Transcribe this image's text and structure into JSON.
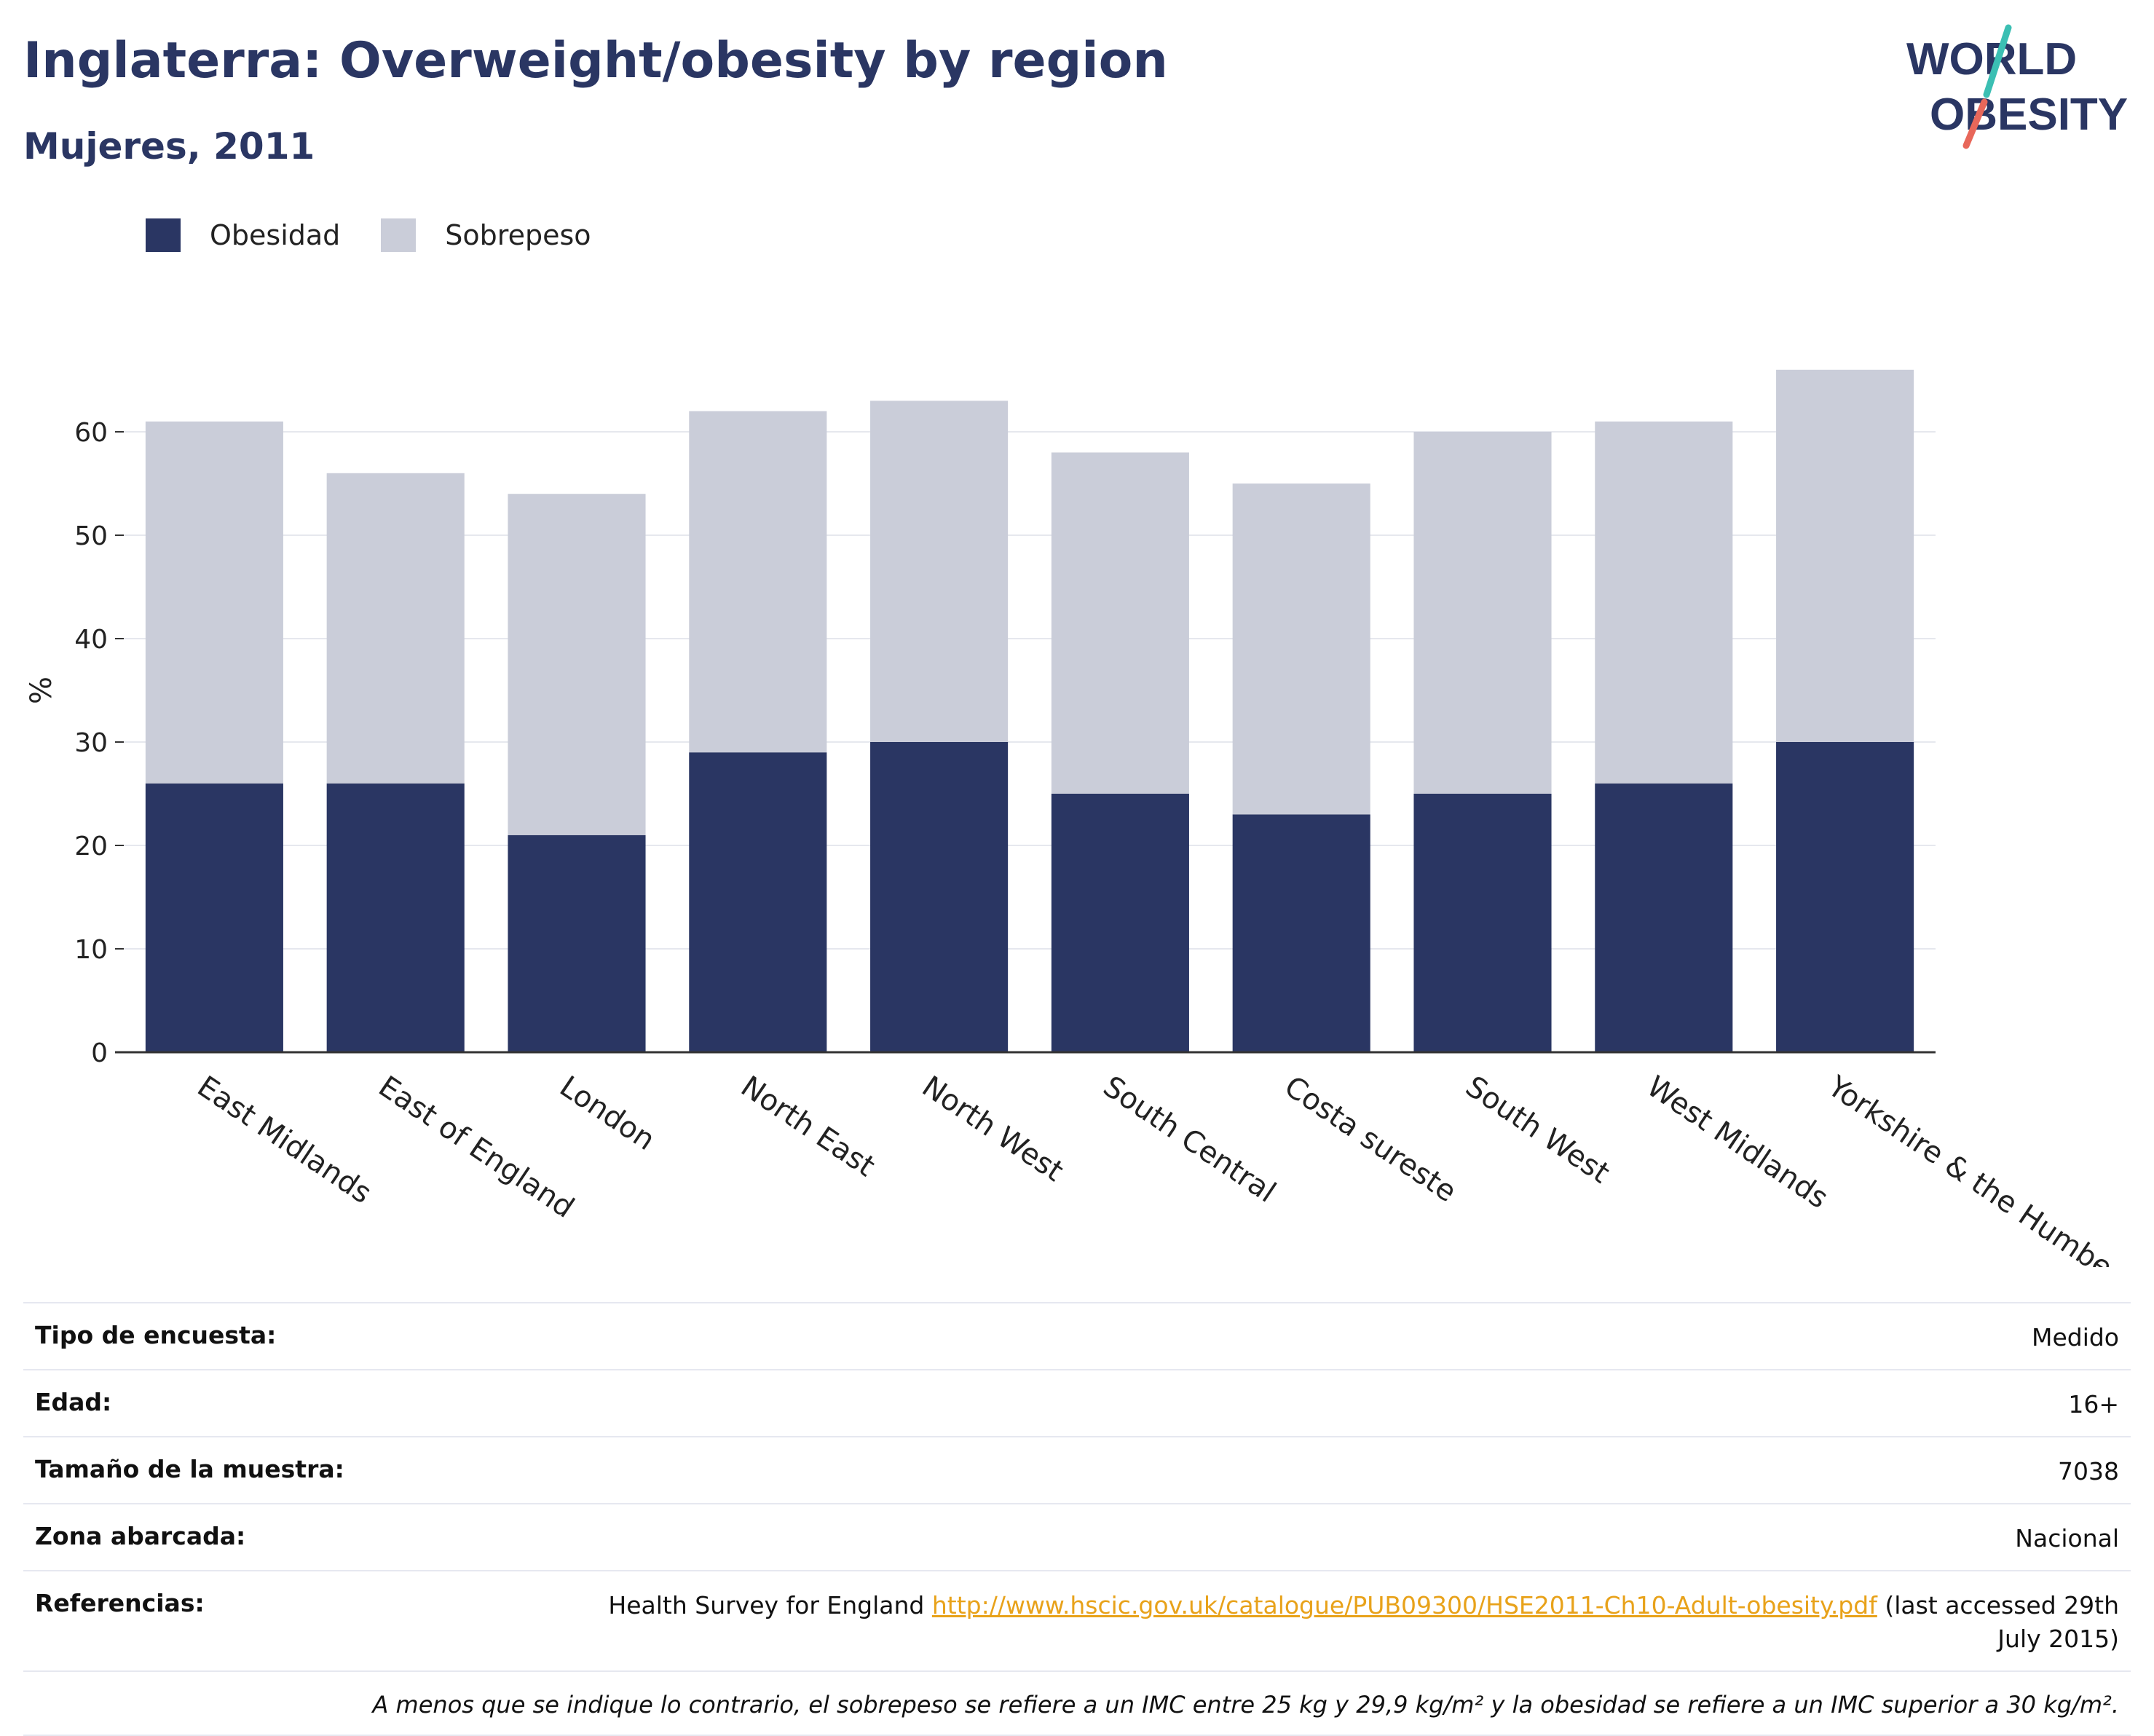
{
  "header": {
    "title": "Inglaterra: Overweight/obesity by region",
    "subtitle": "Mujeres, 2011",
    "logo_line1": "WORLD",
    "logo_line2": "OBESITY"
  },
  "legend": {
    "items": [
      {
        "label": "Obesidad",
        "color": "#2a3663"
      },
      {
        "label": "Sobrepeso",
        "color": "#cacdd9"
      }
    ]
  },
  "chart_data": {
    "type": "bar",
    "stacked": true,
    "categories": [
      "East Midlands",
      "East of England",
      "London",
      "North East",
      "North West",
      "South Central",
      "Costa sureste",
      "South West",
      "West Midlands",
      "Yorkshire & the Humber"
    ],
    "series": [
      {
        "name": "Obesidad",
        "color": "#2a3663",
        "values": [
          26,
          26,
          21,
          29,
          30,
          25,
          23,
          25,
          26,
          30
        ]
      },
      {
        "name": "Sobrepeso",
        "color": "#cacdd9",
        "values": [
          35,
          30,
          33,
          33,
          33,
          33,
          32,
          35,
          35,
          36
        ]
      }
    ],
    "ylabel": "%",
    "xlabel": "",
    "ylim": [
      0,
      70
    ],
    "yticks": [
      0,
      10,
      20,
      30,
      40,
      50,
      60
    ],
    "grid": true,
    "legend_position": "top-left"
  },
  "meta": {
    "survey_type_label": "Tipo de encuesta:",
    "survey_type_value": "Medido",
    "age_label": "Edad:",
    "age_value": "16+",
    "sample_label": "Tamaño de la muestra:",
    "sample_value": "7038",
    "area_label": "Zona abarcada:",
    "area_value": "Nacional",
    "refs_label": "Referencias:",
    "refs_prefix": "Health Survey for England ",
    "refs_link": "http://www.hscic.gov.uk/catalogue/PUB09300/HSE2011-Ch10-Adult-obesity.pdf",
    "refs_suffix": " (last accessed 29th July 2015)",
    "note": "A menos que se indique lo contrario, el sobrepeso se refiere a un IMC entre 25 kg y 29,9 kg/m² y la obesidad se refiere a un IMC superior a 30 kg/m²."
  }
}
